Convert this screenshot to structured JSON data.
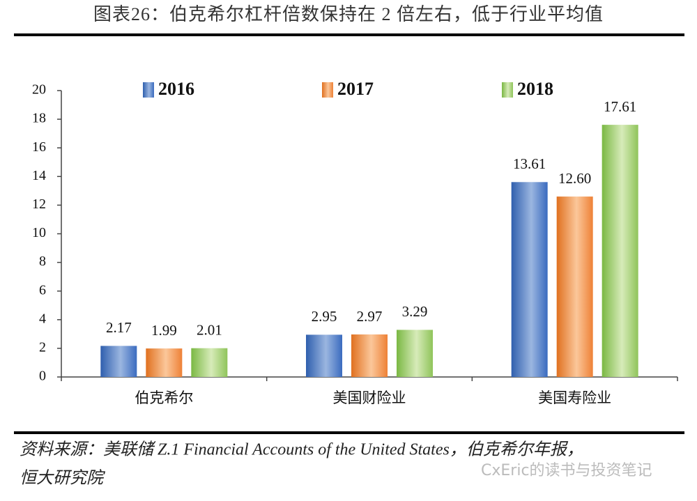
{
  "chart_data": {
    "type": "bar",
    "title": "图表26：伯克希尔杠杆倍数保持在 2 倍左右，低于行业平均值",
    "categories": [
      "伯克希尔",
      "美国财险业",
      "美国寿险业"
    ],
    "series": [
      {
        "name": "2016",
        "color": "#3d6fc2",
        "values": [
          2.17,
          2.95,
          13.61
        ],
        "value_labels": [
          "2.17",
          "2.95",
          "13.61"
        ]
      },
      {
        "name": "2017",
        "color": "#ee8136",
        "values": [
          1.99,
          2.97,
          12.6
        ],
        "value_labels": [
          "1.99",
          "2.97",
          "12.60"
        ]
      },
      {
        "name": "2018",
        "color": "#8fc45a",
        "values": [
          2.01,
          3.29,
          17.61
        ],
        "value_labels": [
          "2.01",
          "3.29",
          "17.61"
        ]
      }
    ],
    "ylim": [
      0,
      20
    ],
    "yticks": [
      0,
      2,
      4,
      6,
      8,
      10,
      12,
      14,
      16,
      18,
      20
    ],
    "grid": false,
    "legend": "top",
    "source": [
      "资料来源：美联储 Z.1 Financial Accounts of the United States，伯克希尔年报，",
      "恒大研究院"
    ],
    "watermark": "CxEric的读书与投资笔记"
  }
}
